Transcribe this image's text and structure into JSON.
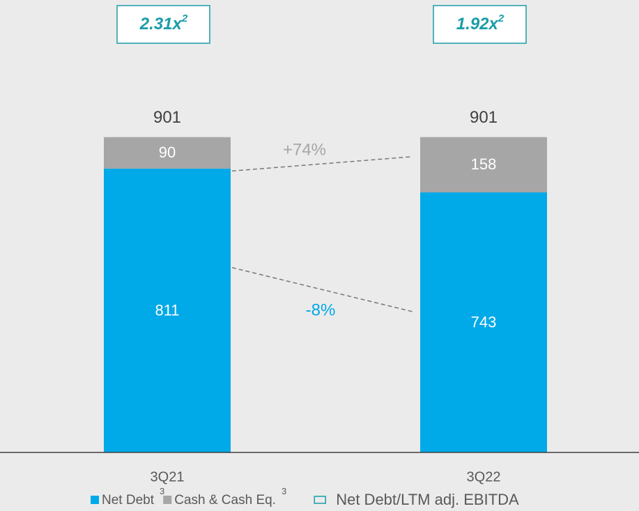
{
  "chart_data": {
    "type": "stacked_bar",
    "categories": [
      "3Q21",
      "3Q22"
    ],
    "series": [
      {
        "name": "Net Debt",
        "footnote": "3",
        "color": "#00a9e8",
        "values": [
          811,
          743
        ]
      },
      {
        "name": "Cash & Cash Eq.",
        "footnote": "3",
        "color": "#a6a6a6",
        "values": [
          90,
          158
        ]
      }
    ],
    "totals": [
      901,
      901
    ],
    "ratio": {
      "name": "Net Debt/LTM adj. EBITDA",
      "color": "#1a9ca8",
      "values": [
        2.31,
        1.92
      ],
      "value_labels": [
        "2.31x",
        "1.92x"
      ],
      "footnote": "2"
    },
    "changes": [
      {
        "label": "+74%",
        "series": 1,
        "color": "#a6a6a6"
      },
      {
        "label": "-8%",
        "series": 0,
        "color": "#00a9e8"
      }
    ],
    "ylim": [
      0,
      1000
    ]
  }
}
